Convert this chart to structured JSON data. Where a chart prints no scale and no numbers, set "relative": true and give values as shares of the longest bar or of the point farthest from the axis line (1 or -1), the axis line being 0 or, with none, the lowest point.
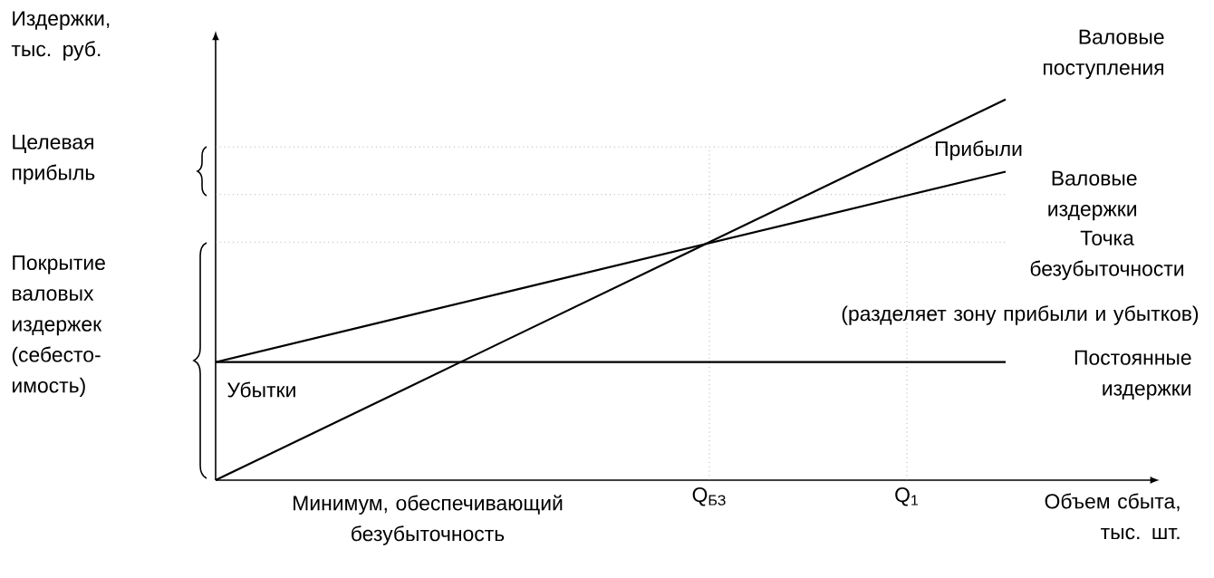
{
  "chart_data": {
    "type": "line",
    "relative": true,
    "xlabel": "Объем сбыта, тыс. шт.",
    "categories": [
      null,
      null,
      null,
      null,
      null,
      "Q$_{БЗ}$",
      null,
      "Q$_{1}$",
      null
    ],
    "grid": "x",
    "series": [
      {
        "name": "Валовые поступления",
        "color": "#000000",
        "values": [
          0,
          0.125,
          0.25,
          0.375,
          0.5,
          0.625,
          0.75,
          0.875,
          1
        ]
      },
      {
        "name": "Валовые издержки",
        "color": "#000000",
        "values": [
          0.31,
          0.3725,
          0.435,
          0.4975,
          0.56,
          0.6225,
          0.685,
          0.7475,
          0.81
        ]
      },
      {
        "name": "Постоянные издержки",
        "color": "#000000",
        "values": [
          0.31,
          0.31,
          0.31,
          0.31,
          0.31,
          0.31,
          0.31,
          0.31,
          0.31
        ]
      }
    ],
    "ref_lines": [
      {
        "axis": "y",
        "value": 0.875,
        "color": "#808080",
        "line_style": "dotted"
      },
      {
        "axis": "y",
        "value": 0.75,
        "color": "#808080",
        "line_style": "dotted"
      },
      {
        "axis": "y",
        "value": 0.625,
        "color": "#808080",
        "line_style": "dotted"
      }
    ],
    "annotations": [
      "Целевая прибыль",
      "Покрытие валовых издержек (себесто-имость)",
      "Убытки",
      "Прибыли",
      "Точка безубыточности",
      "(разделяет зону прибыли и убытков)",
      "Минимум, обеспечивающий безубыточность",
      "Издержки, тыс. руб."
    ]
  }
}
